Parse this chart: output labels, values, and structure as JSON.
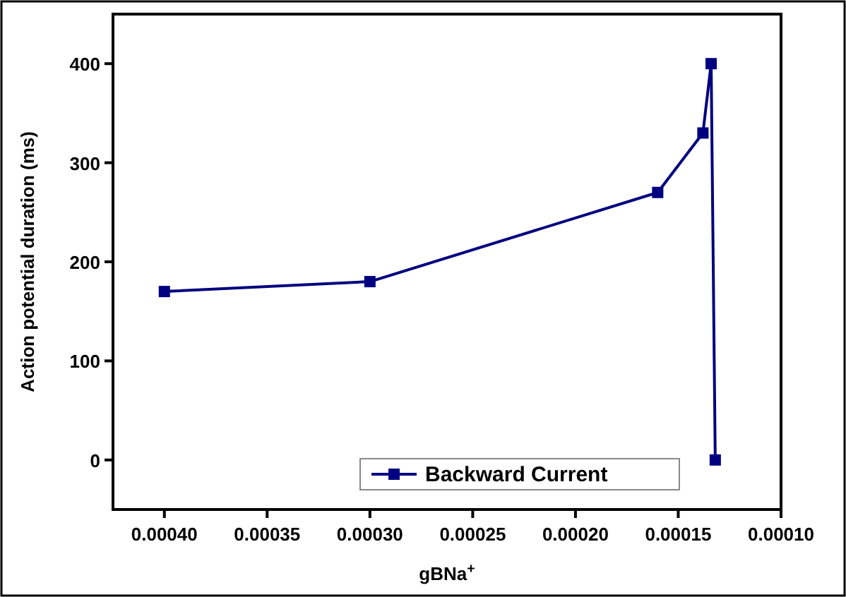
{
  "chart_data": {
    "type": "line",
    "xlabel": "gBNa$^{+}$",
    "ylabel": "Action potential duration (ms)",
    "x": [
      0.0004,
      0.0003,
      0.00016,
      0.000138,
      0.000134,
      0.000132
    ],
    "series": [
      {
        "name": "Backward Current",
        "color": "#000080",
        "values": [
          170,
          180,
          270,
          330,
          400,
          0
        ]
      }
    ],
    "xlim": [
      0.000425,
      0.0001
    ],
    "xticks": [
      {
        "value": 0.0004,
        "label": "0.00040"
      },
      {
        "value": 0.00035,
        "label": "0.00035"
      },
      {
        "value": 0.0003,
        "label": "0.00030"
      },
      {
        "value": 0.00025,
        "label": "0.00025"
      },
      {
        "value": 0.0002,
        "label": "0.00020"
      },
      {
        "value": 0.00015,
        "label": "0.00015"
      },
      {
        "value": 0.0001,
        "label": "0.00010"
      }
    ],
    "ylim": [
      -50,
      450
    ],
    "yticks": [
      0,
      100,
      200,
      300,
      400
    ],
    "marker": "square",
    "line_style": "solid",
    "legend": "bottom right",
    "grid": false
  }
}
